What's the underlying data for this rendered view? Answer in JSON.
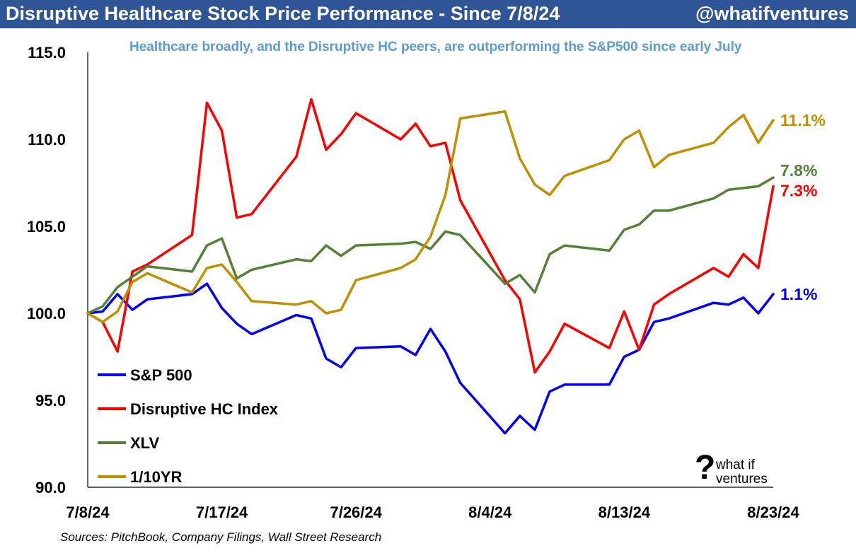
{
  "header": {
    "title": "Disruptive Healthcare Stock Price Performance - Since 7/8/24",
    "handle": "@whatifventures"
  },
  "subtitle": "Healthcare broadly, and the Disruptive HC peers, are outperforming the S&P500 since early July",
  "source": "Sources: PitchBook, Company Filings, Wall Street Research",
  "logo": {
    "mark": "?",
    "line1": "what if",
    "line2": "ventures"
  },
  "chart_data": {
    "type": "line",
    "x_start_date": "7/8/24",
    "x_end_date": "8/23/24",
    "x_tick_labels": [
      "7/8/24",
      "7/17/24",
      "7/26/24",
      "8/4/24",
      "8/13/24",
      "8/23/24"
    ],
    "x_ticks": [
      "7/8/24",
      "7/17/24",
      "7/26/24",
      "8/4/24",
      "8/13/24",
      "8/23/24"
    ],
    "ylim": [
      90,
      115
    ],
    "y_ticks": [
      90,
      95,
      100,
      105,
      110,
      115
    ],
    "y_tick_labels": [
      "90.0",
      "95.0",
      "100.0",
      "105.0",
      "110.0",
      "115.0"
    ],
    "grid": false,
    "legend_position": "bottom-left",
    "x": [
      "7/8/24",
      "7/9/24",
      "7/10/24",
      "7/11/24",
      "7/12/24",
      "7/15/24",
      "7/16/24",
      "7/17/24",
      "7/18/24",
      "7/19/24",
      "7/22/24",
      "7/23/24",
      "7/24/24",
      "7/25/24",
      "7/26/24",
      "7/29/24",
      "7/30/24",
      "7/31/24",
      "8/1/24",
      "8/2/24",
      "8/5/24",
      "8/6/24",
      "8/7/24",
      "8/8/24",
      "8/9/24",
      "8/12/24",
      "8/13/24",
      "8/14/24",
      "8/15/24",
      "8/16/24",
      "8/19/24",
      "8/20/24",
      "8/21/24",
      "8/22/24",
      "8/23/24"
    ],
    "series": [
      {
        "name": "S&P 500",
        "color": "#0000ff",
        "end_label": "1.1%",
        "values": [
          100.0,
          100.1,
          101.1,
          100.2,
          100.8,
          101.1,
          101.7,
          100.3,
          99.4,
          98.8,
          99.9,
          99.7,
          97.4,
          96.9,
          98.0,
          98.1,
          97.6,
          99.1,
          97.8,
          96.0,
          93.1,
          94.1,
          93.3,
          95.5,
          95.9,
          95.9,
          97.5,
          97.9,
          99.5,
          99.7,
          100.6,
          100.5,
          100.9,
          100.0,
          101.1
        ]
      },
      {
        "name": "Disruptive HC Index",
        "color": "#ff0000",
        "end_label": "7.3%",
        "values": [
          100.0,
          99.5,
          97.8,
          102.4,
          102.8,
          104.5,
          112.1,
          110.5,
          105.5,
          105.7,
          109.0,
          112.3,
          109.4,
          110.3,
          111.5,
          110.0,
          110.9,
          109.6,
          109.8,
          106.5,
          101.9,
          100.8,
          96.6,
          97.8,
          99.4,
          98.0,
          100.1,
          97.9,
          100.5,
          101.1,
          102.6,
          102.1,
          103.4,
          102.6,
          107.3
        ]
      },
      {
        "name": "XLV",
        "color": "#538135",
        "end_label": "7.8%",
        "values": [
          100.0,
          100.4,
          101.5,
          102.1,
          102.7,
          102.4,
          103.9,
          104.3,
          102.0,
          102.5,
          103.1,
          103.0,
          103.9,
          103.3,
          103.9,
          104.0,
          104.1,
          103.7,
          104.7,
          104.5,
          101.7,
          102.2,
          101.2,
          103.4,
          103.9,
          103.6,
          104.8,
          105.1,
          105.9,
          105.9,
          106.6,
          107.1,
          107.2,
          107.3,
          107.8
        ]
      },
      {
        "name": "1/10YR",
        "color": "#bf9000",
        "end_label": "11.1%",
        "values": [
          100.0,
          99.5,
          100.1,
          101.8,
          102.3,
          101.2,
          102.6,
          102.8,
          101.8,
          100.7,
          100.5,
          100.7,
          100.0,
          100.2,
          101.9,
          102.6,
          103.1,
          104.4,
          106.8,
          111.2,
          111.6,
          108.9,
          107.4,
          106.8,
          107.9,
          108.8,
          110.0,
          110.5,
          108.4,
          109.1,
          109.8,
          110.7,
          111.4,
          109.8,
          111.1
        ]
      }
    ]
  }
}
